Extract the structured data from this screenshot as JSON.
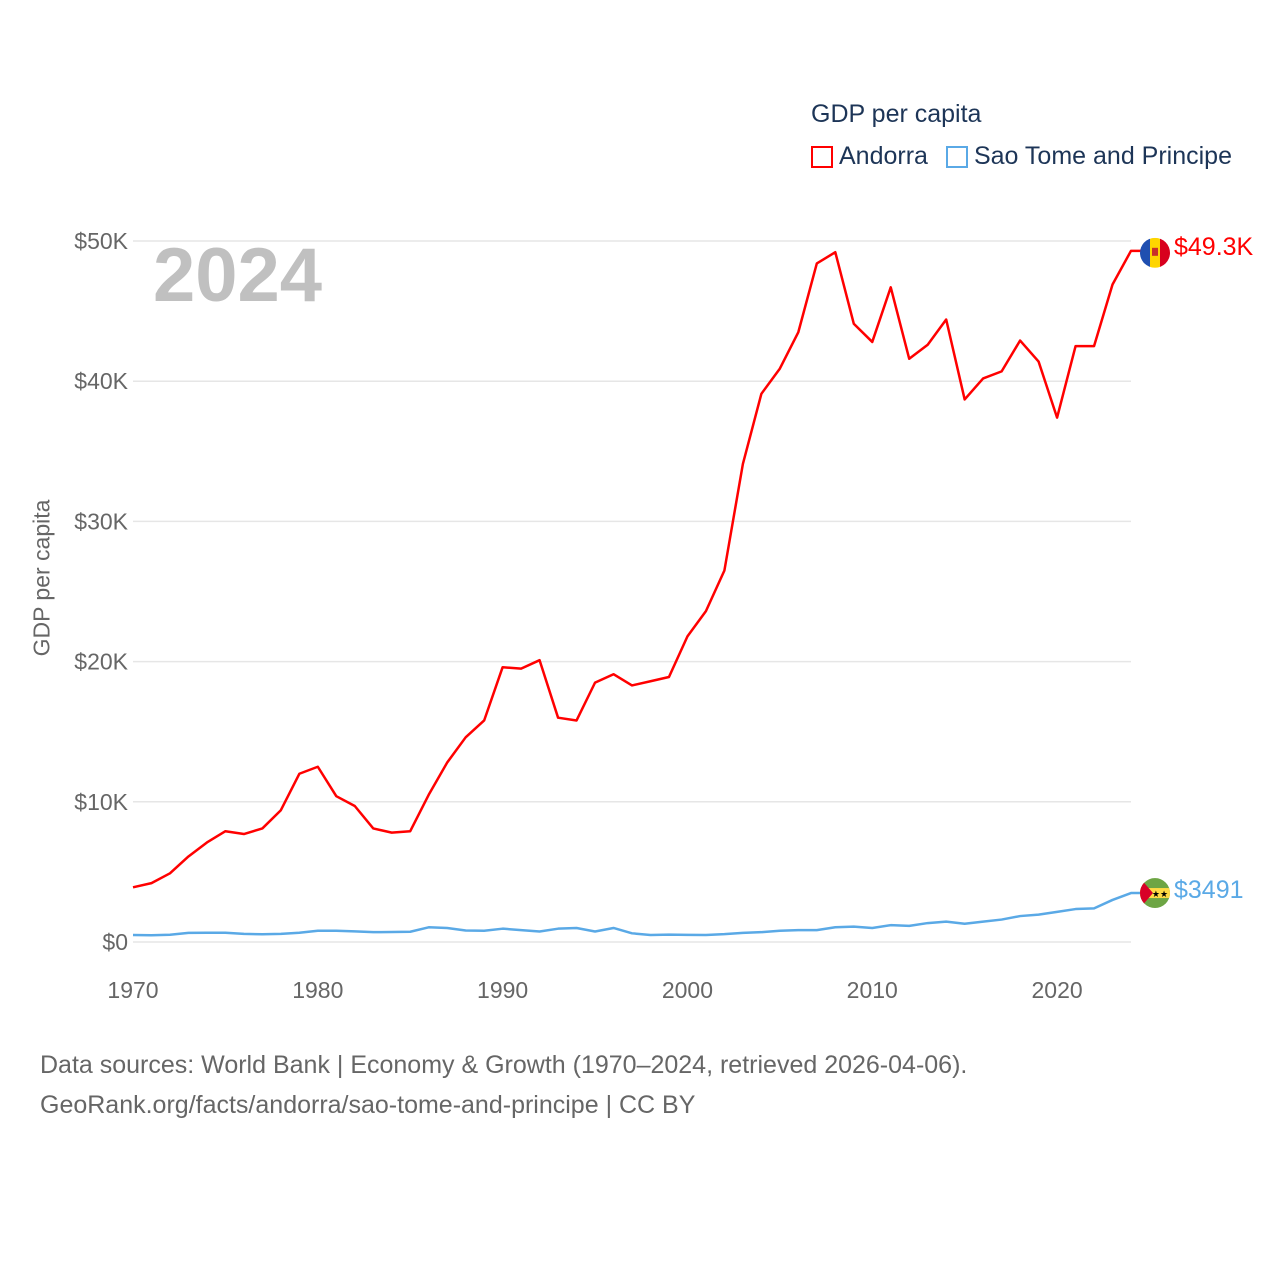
{
  "chart_data": {
    "type": "line",
    "title": "GDP per capita",
    "ylabel": "GDP per capita",
    "xlabel": "",
    "xlim": [
      1970,
      2024
    ],
    "ylim": [
      0,
      50000
    ],
    "x_ticks": [
      "1970",
      "1980",
      "1990",
      "2000",
      "2010",
      "2020"
    ],
    "y_ticks": [
      "$0",
      "$10K",
      "$20K",
      "$30K",
      "$40K",
      "$50K"
    ],
    "grid": true,
    "legend_position": "top-right",
    "year_watermark": "2024",
    "start_year": 1970,
    "series": [
      {
        "name": "Andorra",
        "color": "#ff0000",
        "end_label": "$49.3K",
        "flag": "Andorra flag",
        "values": [
          3900,
          4200,
          4900,
          6100,
          7100,
          7900,
          7700,
          8100,
          9400,
          12000,
          12500,
          10400,
          9700,
          8100,
          7800,
          7900,
          10500,
          12800,
          14600,
          15800,
          19600,
          19500,
          20100,
          16000,
          15800,
          18500,
          19100,
          18300,
          18600,
          18900,
          21800,
          23600,
          26500,
          34100,
          39100,
          40900,
          43500,
          48400,
          49200,
          44100,
          42800,
          46700,
          41600,
          42600,
          44400,
          38700,
          40200,
          40700,
          42900,
          41400,
          37400,
          42500,
          42500,
          46900,
          49300
        ]
      },
      {
        "name": "Sao Tome and Principe",
        "color": "#5aa9e6",
        "end_label": "$3491",
        "flag": "Sao Tome and Principe flag",
        "values": [
          500,
          480,
          520,
          650,
          660,
          660,
          580,
          550,
          580,
          660,
          800,
          800,
          760,
          700,
          710,
          730,
          1050,
          1000,
          820,
          800,
          950,
          850,
          750,
          950,
          1000,
          750,
          1000,
          620,
          500,
          530,
          510,
          500,
          560,
          650,
          700,
          800,
          850,
          850,
          1050,
          1100,
          1000,
          1200,
          1150,
          1350,
          1450,
          1300,
          1450,
          1600,
          1850,
          1950,
          2150,
          2350,
          2400,
          3000,
          3491
        ]
      }
    ]
  },
  "legend": {
    "title": "GDP per capita"
  },
  "footer": {
    "line1": "Data sources: World Bank | Economy & Growth (1970–2024, retrieved 2026-04-06).",
    "line2": "GeoRank.org/facts/andorra/sao-tome-and-principe | CC BY"
  }
}
